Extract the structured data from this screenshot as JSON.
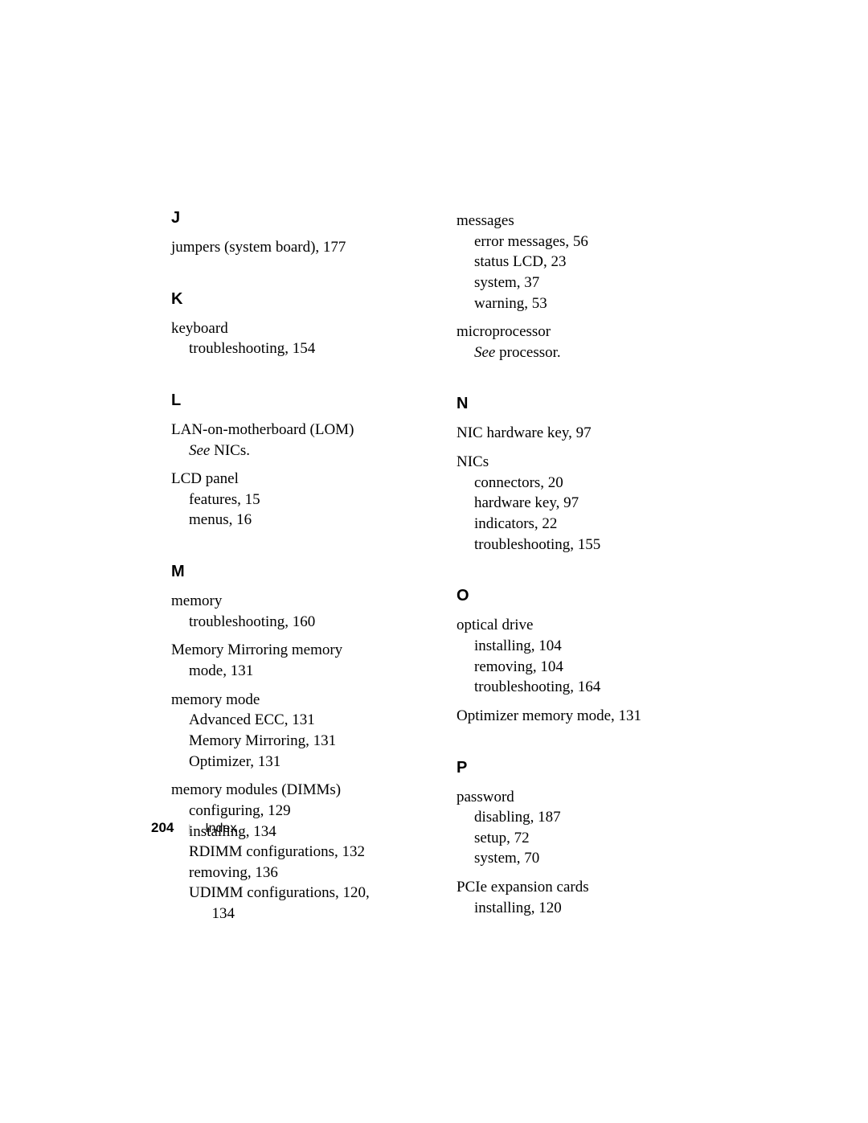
{
  "left": {
    "J": {
      "heading": "J",
      "entries": [
        {
          "main": "jumpers (system board), 177"
        }
      ]
    },
    "K": {
      "heading": "K",
      "entries": [
        {
          "main": "keyboard",
          "subs": [
            "troubleshooting, 154"
          ]
        }
      ]
    },
    "L": {
      "heading": "L",
      "entries": [
        {
          "main": "LAN-on-motherboard (LOM)",
          "subs": [
            "<em>See</em> NICs."
          ]
        },
        {
          "main": "LCD panel",
          "subs": [
            "features, 15",
            "menus, 16"
          ]
        }
      ]
    },
    "M": {
      "heading": "M",
      "entries": [
        {
          "main": "memory",
          "subs": [
            "troubleshooting, 160"
          ]
        },
        {
          "main": "Memory Mirroring memory",
          "subs_cont": [
            "mode, 131"
          ]
        },
        {
          "main": "memory mode",
          "subs": [
            "Advanced ECC, 131",
            "Memory Mirroring, 131",
            "Optimizer, 131"
          ]
        },
        {
          "main": "memory modules (DIMMs)",
          "subs": [
            "configuring, 129",
            "installing, 134",
            "RDIMM configurations, 132",
            "removing, 136",
            "UDIMM configurations, 120,",
            "&nbsp;&nbsp;&nbsp;&nbsp;&nbsp;&nbsp;134"
          ]
        }
      ]
    }
  },
  "right": {
    "top": {
      "entries": [
        {
          "main": "messages",
          "subs": [
            "error messages, 56",
            "status LCD, 23",
            "system, 37",
            "warning, 53"
          ]
        },
        {
          "main": "microprocessor",
          "subs": [
            "<em>See</em> processor."
          ]
        }
      ]
    },
    "N": {
      "heading": "N",
      "entries": [
        {
          "main": "NIC hardware key, 97"
        },
        {
          "main": "NICs",
          "subs": [
            "connectors, 20",
            "hardware key, 97",
            "indicators, 22",
            "troubleshooting, 155"
          ]
        }
      ]
    },
    "O": {
      "heading": "O",
      "entries": [
        {
          "main": "optical drive",
          "subs": [
            "installing, 104",
            "removing, 104",
            "troubleshooting, 164"
          ]
        },
        {
          "main": "Optimizer memory mode, 131"
        }
      ]
    },
    "P": {
      "heading": "P",
      "entries": [
        {
          "main": "password",
          "subs": [
            "disabling, 187",
            "setup, 72",
            "system, 70"
          ]
        },
        {
          "main": "PCIe expansion cards",
          "subs": [
            "installing, 120"
          ]
        }
      ]
    }
  },
  "footer": {
    "page": "204",
    "sep": "|",
    "label": "Index"
  }
}
